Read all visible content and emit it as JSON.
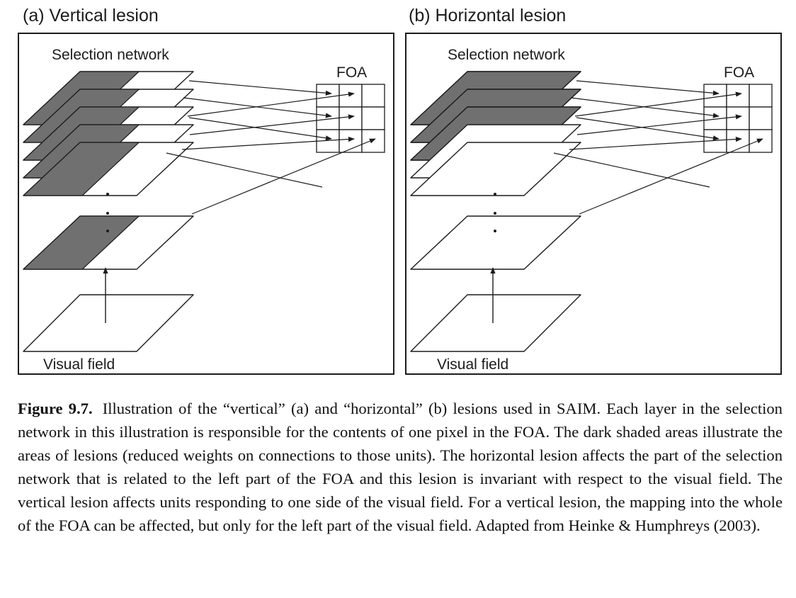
{
  "panels": [
    {
      "title": "(a)  Vertical lesion",
      "selection_label": "Selection network",
      "foa_label": "FOA",
      "visual_field_label": "Visual field",
      "lesion": "vertical"
    },
    {
      "title": "(b)  Horizontal lesion",
      "selection_label": "Selection network",
      "foa_label": "FOA",
      "visual_field_label": "Visual field",
      "lesion": "horizontal"
    }
  ],
  "caption": {
    "label": "Figure 9.7.",
    "text": "Illustration of the “vertical” (a) and “horizontal” (b) lesions used in SAIM. Each layer in the selection network in this illustration is responsible for the contents of one pixel in the FOA. The dark shaded areas illustrate the areas of lesions (reduced weights on connections to those units). The horizontal lesion affects the part of the selection network that is related to the left part of the FOA and this lesion is invariant with respect to the visual field. The vertical lesion affects units responding to one side of the visual field. For a vertical lesion, the mapping into the whole of the FOA can be affected, but only for the left part of the visual field. Adapted from Heinke & Humphreys (2003)."
  },
  "colors": {
    "lesion": "#707070",
    "stroke": "#1c1c1c",
    "background": "#ffffff"
  }
}
